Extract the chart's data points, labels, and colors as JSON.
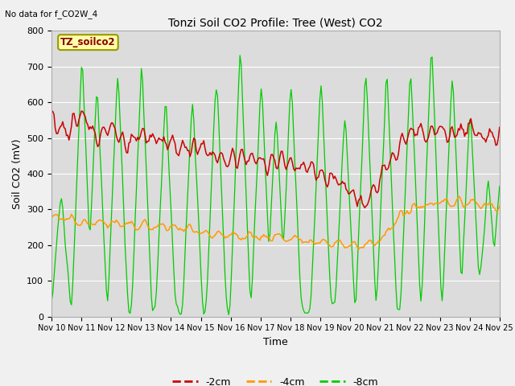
{
  "title": "Tonzi Soil CO2 Profile: Tree (West) CO2",
  "top_left_text": "No data for f_CO2W_4",
  "legend_box_text": "TZ_soilco2",
  "xlabel": "Time",
  "ylabel": "Soil CO2 (mV)",
  "ylim": [
    0,
    800
  ],
  "xtick_labels": [
    "Nov 10",
    "Nov 11",
    "Nov 12",
    "Nov 13",
    "Nov 14",
    "Nov 15",
    "Nov 16",
    "Nov 17",
    "Nov 18",
    "Nov 19",
    "Nov 20",
    "Nov 21",
    "Nov 22",
    "Nov 23",
    "Nov 24",
    "Nov 25"
  ],
  "line_colors": [
    "#cc0000",
    "#ff9900",
    "#00cc00"
  ],
  "line_labels": [
    "-2cm",
    "-4cm",
    "-8cm"
  ],
  "bg_color": "#dcdcdc",
  "fig_color": "#f0f0f0"
}
